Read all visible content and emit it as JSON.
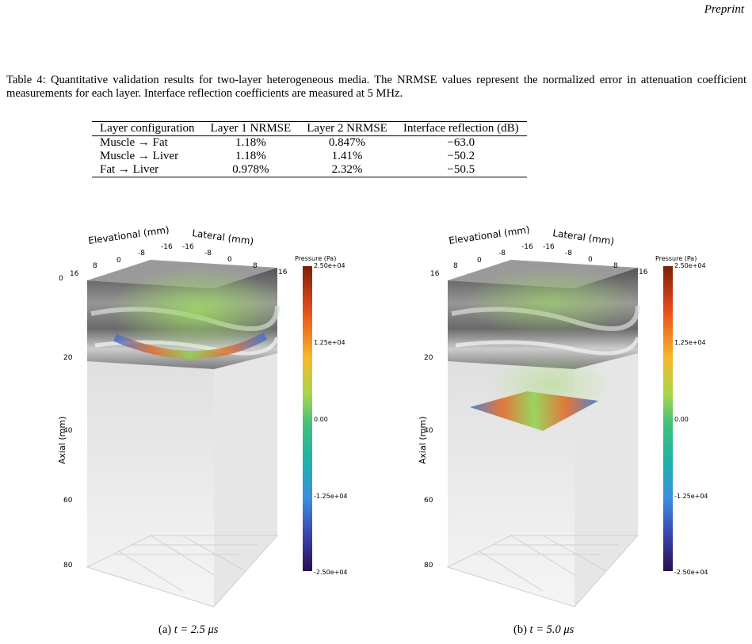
{
  "header": {
    "running_title": "Preprint"
  },
  "caption": "Table 4: Quantitative validation results for two-layer heterogeneous media. The NRMSE values represent the normalized error in attenuation coefficient measurements for each layer. Interface reflection coefficients are measured at 5 MHz.",
  "table": {
    "columns": [
      "Layer configuration",
      "Layer 1 NRMSE",
      "Layer 2 NRMSE",
      "Interface reflection (dB)"
    ],
    "rows": [
      [
        "Muscle → Fat",
        "1.18%",
        "0.847%",
        "−63.0"
      ],
      [
        "Muscle → Liver",
        "1.18%",
        "1.41%",
        "−50.2"
      ],
      [
        "Fat → Liver",
        "0.978%",
        "2.32%",
        "−50.5"
      ]
    ]
  },
  "figure": {
    "axes": {
      "elevational_label": "Elevational (mm)",
      "lateral_label": "Lateral (mm)",
      "axial_label": "Axial (mm)",
      "elevational_ticks": [
        "16",
        "8",
        "0",
        "-8",
        "-16"
      ],
      "lateral_ticks": [
        "-16",
        "-8",
        "0",
        "8",
        "16"
      ],
      "axial_ticks": [
        "0",
        "20",
        "40",
        "60",
        "80"
      ]
    },
    "colorbar": {
      "title": "Pressure (Pa)",
      "ticks": [
        "2.50e+04",
        "1.25e+04",
        "0.00",
        "-1.25e+04",
        "-2.50e+04"
      ],
      "colors": [
        "#7f1d0a",
        "#e8501c",
        "#f7b82a",
        "#a8d64a",
        "#3fc07a",
        "#1fb2a8",
        "#3a8fe0",
        "#3b45b0",
        "#2a0f4f"
      ]
    },
    "panels": [
      {
        "caption_label": "(a)",
        "caption_time": "t = 2.5 μs"
      },
      {
        "caption_label": "(b)",
        "caption_time": "t = 5.0 μs"
      }
    ]
  }
}
